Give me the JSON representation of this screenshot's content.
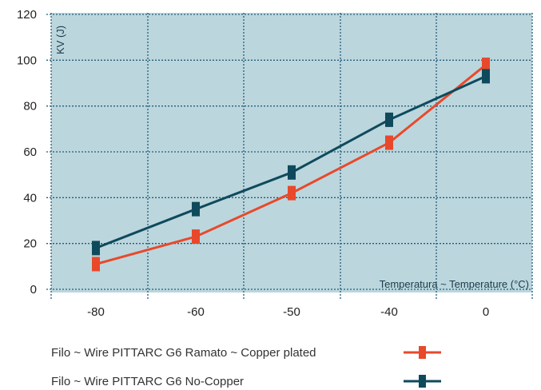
{
  "chart_data": {
    "type": "line",
    "ylabel": "KV (J)",
    "xlabel": "Temperatura ~ Temperature (°C)",
    "categories": [
      "-80",
      "-60",
      "-50",
      "-40",
      "0"
    ],
    "ylim": [
      0,
      120
    ],
    "yticks": [
      0,
      20,
      40,
      60,
      80,
      100,
      120
    ],
    "grid": true,
    "legend_placement": "bottom",
    "series": [
      {
        "name": "Filo ~ Wire PITTARC G6 Ramato ~ Copper plated",
        "values": [
          11,
          23,
          42,
          64,
          98
        ],
        "color": "#e8492b"
      },
      {
        "name": "Filo ~ Wire PITTARC G6 No-Copper",
        "values": [
          18,
          35,
          51,
          74,
          93
        ],
        "color": "#0e4a5c"
      }
    ]
  },
  "colors": {
    "plot_bg": "#bcd6dd",
    "grid": "#1f5f7a",
    "axis_text": "#222222"
  }
}
